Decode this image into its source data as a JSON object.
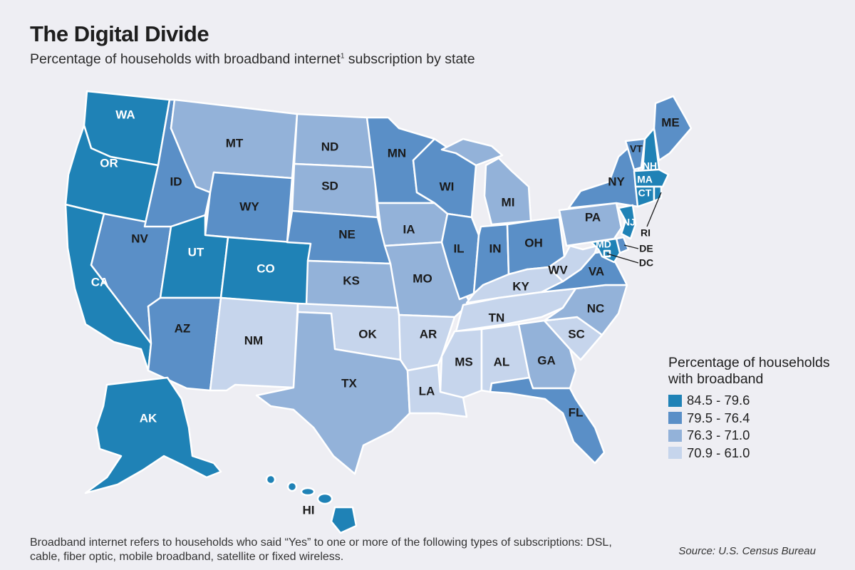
{
  "title": "The Digital Divide",
  "subtitle": "Percentage of households with broadband internet",
  "subtitle_note_marker": "1",
  "subtitle_suffix": " subscription by state",
  "legend": {
    "title_line1": "Percentage of households",
    "title_line2": "with broadband",
    "items": [
      {
        "range": "84.5 - 79.6",
        "color": "#1f82b6"
      },
      {
        "range": "79.5 - 76.4",
        "color": "#5a8fc7"
      },
      {
        "range": "76.3 - 71.0",
        "color": "#93b2d9"
      },
      {
        "range": "70.9 - 61.0",
        "color": "#c6d5ec"
      }
    ]
  },
  "states": {
    "WA": {
      "label": "WA",
      "class": 1
    },
    "OR": {
      "label": "OR",
      "class": 1
    },
    "CA": {
      "label": "CA",
      "class": 1
    },
    "NV": {
      "label": "NV",
      "class": 2
    },
    "ID": {
      "label": "ID",
      "class": 2
    },
    "MT": {
      "label": "MT",
      "class": 3
    },
    "WY": {
      "label": "WY",
      "class": 2
    },
    "UT": {
      "label": "UT",
      "class": 1
    },
    "CO": {
      "label": "CO",
      "class": 1
    },
    "AZ": {
      "label": "AZ",
      "class": 2
    },
    "NM": {
      "label": "NM",
      "class": 4
    },
    "ND": {
      "label": "ND",
      "class": 3
    },
    "SD": {
      "label": "SD",
      "class": 3
    },
    "NE": {
      "label": "NE",
      "class": 2
    },
    "KS": {
      "label": "KS",
      "class": 3
    },
    "OK": {
      "label": "OK",
      "class": 4
    },
    "TX": {
      "label": "TX",
      "class": 3
    },
    "MN": {
      "label": "MN",
      "class": 2
    },
    "IA": {
      "label": "IA",
      "class": 3
    },
    "MO": {
      "label": "MO",
      "class": 3
    },
    "AR": {
      "label": "AR",
      "class": 4
    },
    "LA": {
      "label": "LA",
      "class": 4
    },
    "WI": {
      "label": "WI",
      "class": 2
    },
    "IL": {
      "label": "IL",
      "class": 2
    },
    "MI": {
      "label": "MI",
      "class": 3
    },
    "IN": {
      "label": "IN",
      "class": 2
    },
    "OH": {
      "label": "OH",
      "class": 2
    },
    "KY": {
      "label": "KY",
      "class": 4
    },
    "TN": {
      "label": "TN",
      "class": 4
    },
    "MS": {
      "label": "MS",
      "class": 4
    },
    "AL": {
      "label": "AL",
      "class": 4
    },
    "GA": {
      "label": "GA",
      "class": 3
    },
    "FL": {
      "label": "FL",
      "class": 2
    },
    "SC": {
      "label": "SC",
      "class": 4
    },
    "NC": {
      "label": "NC",
      "class": 3
    },
    "VA": {
      "label": "VA",
      "class": 2
    },
    "WV": {
      "label": "WV",
      "class": 4
    },
    "PA": {
      "label": "PA",
      "class": 3
    },
    "NY": {
      "label": "NY",
      "class": 2
    },
    "VT": {
      "label": "VT",
      "class": 2
    },
    "NH": {
      "label": "NH",
      "class": 1
    },
    "ME": {
      "label": "ME",
      "class": 2
    },
    "MA": {
      "label": "MA",
      "class": 1
    },
    "CT": {
      "label": "CT",
      "class": 1
    },
    "RI": {
      "label": "RI",
      "class": 1
    },
    "NJ": {
      "label": "NJ",
      "class": 1
    },
    "DE": {
      "label": "DE",
      "class": 2
    },
    "MD": {
      "label": "MD",
      "class": 1
    },
    "DC": {
      "label": "DC",
      "class": 1
    },
    "AK": {
      "label": "AK",
      "class": 1
    },
    "HI": {
      "label": "HI",
      "class": 1
    }
  },
  "footnote": "Broadband internet refers to households who said “Yes” to one or more of the following types of subscriptions: DSL, cable, fiber optic, mobile broadband, satellite or fixed wireless.",
  "source": "Source: U.S. Census Bureau"
}
